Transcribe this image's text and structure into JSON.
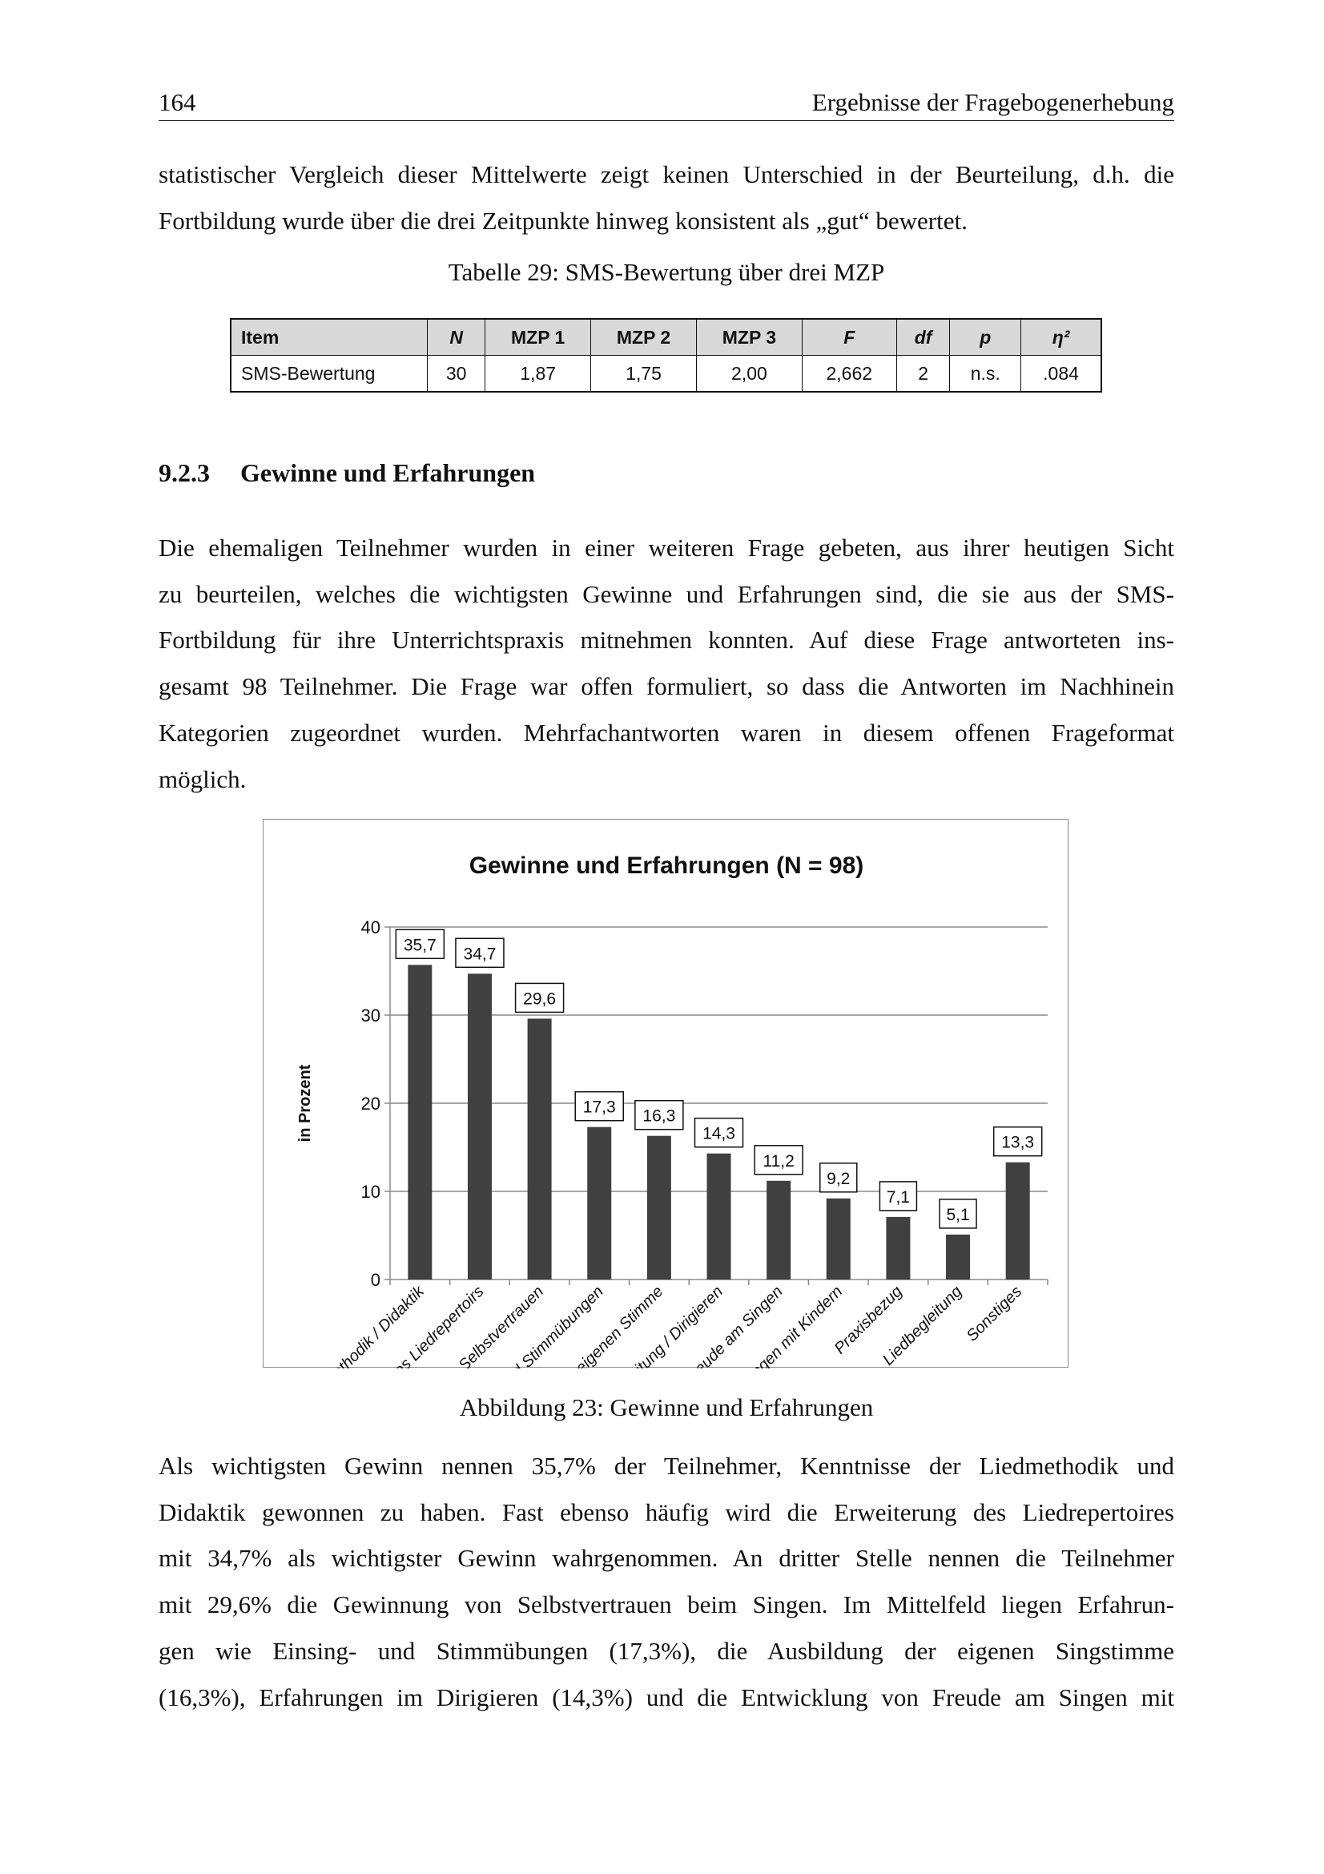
{
  "header": {
    "page_number": "164",
    "running_title": "Ergebnisse der Fragebogenerhebung"
  },
  "paragraphs": [
    {
      "lines": [
        "statistischer Vergleich dieser Mittelwerte zeigt keinen Unterschied in der Beurteilung, d.h. die",
        "Fortbildung wurde über die drei Zeitpunkte hinweg konsistent als „gut“ bewertet."
      ]
    },
    {
      "lines": [
        "Die ehemaligen Teilnehmer wurden in einer weiteren Frage gebeten, aus ihrer heutigen Sicht",
        "zu beurteilen, welches die wichtigsten Gewinne und Erfahrungen sind, die sie aus der SMS-",
        "Fortbildung für ihre Unterrichtspraxis mitnehmen konnten. Auf diese Frage antworteten ins-",
        "gesamt 98 Teilnehmer. Die Frage war offen formuliert, so dass die Antworten im Nachhinein",
        "Kategorien zugeordnet wurden. Mehrfachantworten waren in diesem offenen Frageformat",
        "möglich."
      ]
    },
    {
      "lines": [
        "Als wichtigsten Gewinn nennen 35,7% der Teilnehmer, Kenntnisse der Liedmethodik und",
        "Didaktik gewonnen zu haben. Fast ebenso häufig wird die Erweiterung des Liedrepertoires",
        "mit 34,7% als wichtigster Gewinn wahrgenommen. An dritter Stelle nennen die Teilnehmer",
        "mit 29,6% die Gewinnung von Selbstvertrauen beim Singen. Im Mittelfeld liegen Erfahrun-",
        "gen wie Einsing- und Stimmübungen (17,3%), die Ausbildung der eigenen Singstimme",
        "(16,3%), Erfahrungen im Dirigieren (14,3%) und die Entwicklung von Freude am Singen mit"
      ]
    }
  ],
  "table": {
    "caption": "Tabelle 29: SMS-Bewertung über drei MZP",
    "headers": [
      "Item",
      "N",
      "MZP 1",
      "MZP 2",
      "MZP 3",
      "F",
      "df",
      "p",
      "η²"
    ],
    "rows": [
      [
        "SMS-Bewertung",
        "30",
        "1,87",
        "1,75",
        "2,00",
        "2,662",
        "2",
        "n.s.",
        ".084"
      ]
    ]
  },
  "section": {
    "number": "9.2.3",
    "title": "Gewinne und Erfahrungen"
  },
  "figure_caption": "Abbildung 23: Gewinne und Erfahrungen",
  "chart_data": {
    "type": "bar",
    "title": "Gewinne und Erfahrungen (N = 98)",
    "ylabel": "in Prozent",
    "xlabel": "",
    "ylim": [
      0,
      40
    ],
    "yticks": [
      "0",
      "10",
      "20",
      "30",
      "40"
    ],
    "grid": true,
    "bar_color": "#404040",
    "categories": [
      "Liedmethodik / Didaktik",
      "Erweiterung des Liedrepertoirs",
      "Gewinnung von Selbstvertrauen",
      "Einsing- und Stimmübungen",
      "Ausbildung der eigenen Stimme",
      "Singleitung / Dirigieren",
      "Freude am Singen",
      "Wissen zum Singen mit Kindern",
      "Praxisbezug",
      "Liedbegleitung",
      "Sonstiges"
    ],
    "values": [
      35.7,
      34.7,
      29.6,
      17.3,
      16.3,
      14.3,
      11.2,
      9.2,
      7.1,
      5.1,
      13.3
    ],
    "data_labels": [
      "35,7",
      "34,7",
      "29,6",
      "17,3",
      "16,3",
      "14,3",
      "11,2",
      "9,2",
      "7,1",
      "5,1",
      "13,3"
    ]
  }
}
